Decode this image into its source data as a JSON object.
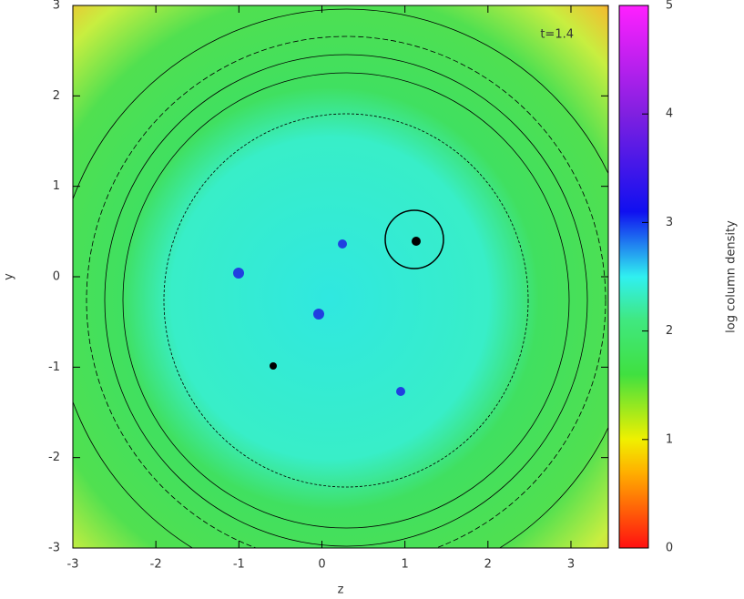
{
  "chart_data": {
    "type": "heatmap",
    "xlabel": "z",
    "ylabel": "y",
    "annotation": "t=1.4",
    "xlim": [
      -3,
      3.45
    ],
    "xticks": [
      -3,
      -2,
      -1,
      0,
      1,
      2,
      3
    ],
    "ylim": [
      -3,
      3
    ],
    "yticks": [
      -3,
      -2,
      -1,
      0,
      1,
      2,
      3
    ],
    "colorbar": {
      "label": "log column density",
      "lim": [
        0,
        5
      ],
      "ticks": [
        0,
        1,
        2,
        3,
        4,
        5
      ]
    }
  }
}
